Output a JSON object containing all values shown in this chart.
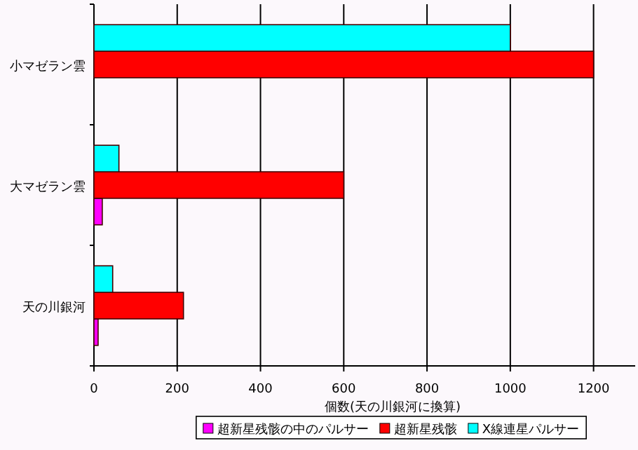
{
  "chart_data": {
    "type": "bar",
    "orientation": "horizontal",
    "xlabel": "個数(天の川銀河に換算)",
    "categories": [
      "小マゼラン雲",
      "大マゼラン雲",
      "天の川銀河"
    ],
    "series": [
      {
        "name": "超新星残骸の中のパルサー",
        "color": "#ff00ff",
        "values": [
          null,
          20,
          10
        ]
      },
      {
        "name": "超新星残骸",
        "color": "#ff0000",
        "values": [
          1200,
          600,
          215
        ]
      },
      {
        "name": "X線連星パルサー",
        "color": "#00ffff",
        "values": [
          1000,
          60,
          45
        ]
      }
    ],
    "xlim": [
      0,
      1300
    ],
    "xticks": [
      0,
      200,
      400,
      600,
      800,
      1000,
      1200
    ],
    "grid": "x",
    "legend": "bottom"
  }
}
